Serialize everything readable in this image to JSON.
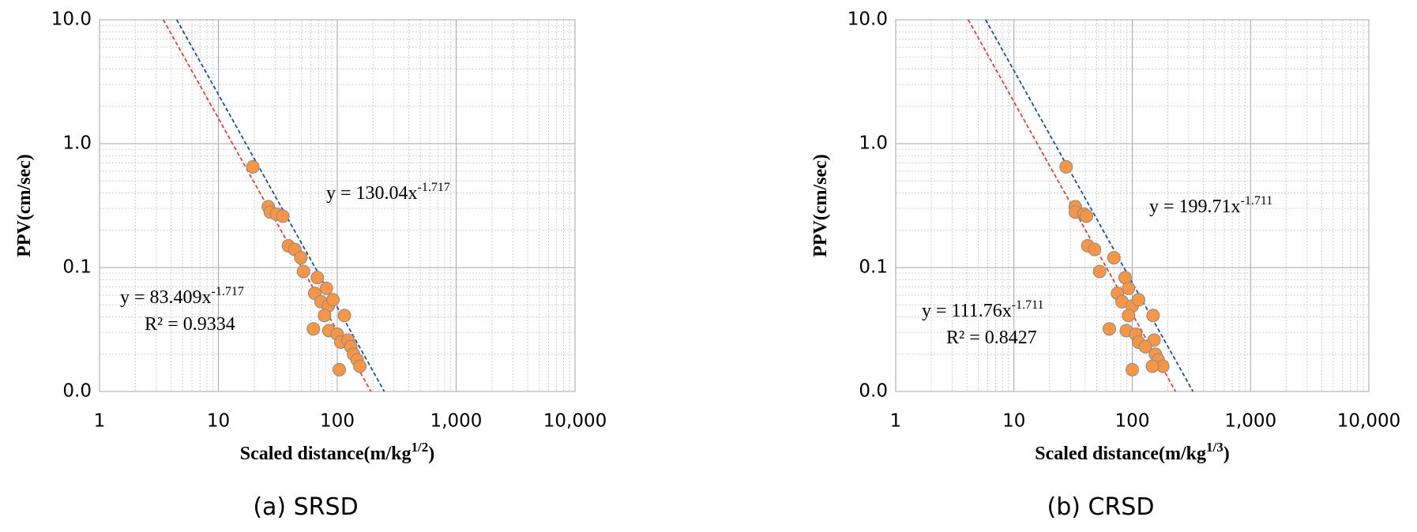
{
  "chart_data": [
    {
      "type": "scatter",
      "caption": "(a) SRSD",
      "x_label": [
        "Scaled distance(m/kg",
        "1/2",
        ")"
      ],
      "y_label": "PPV(cm/sec)",
      "log_x": true,
      "log_y": true,
      "grid": true,
      "xlim": [
        1,
        10000
      ],
      "xticks": [
        1,
        10,
        100,
        {
          "value": 1000,
          "label": "1,000"
        },
        {
          "value": 10000,
          "label": "10,000"
        }
      ],
      "ylim": [
        0.01,
        10
      ],
      "yticks": [
        {
          "value": 0.01,
          "label": "0.0"
        },
        {
          "value": 0.1,
          "label": "0.1"
        },
        {
          "value": 1,
          "label": "1.0"
        },
        {
          "value": 10,
          "label": "10.0"
        }
      ],
      "color": "#f79646",
      "x": [
        19.5,
        26.3,
        27.3,
        30.8,
        34.8,
        38.8,
        43.9,
        49.4,
        52,
        68,
        64.5,
        73,
        81,
        84,
        92,
        78,
        115,
        63,
        85,
        100,
        107,
        123,
        130,
        137,
        147,
        155,
        104
      ],
      "values": [
        0.65,
        0.31,
        0.28,
        0.27,
        0.26,
        0.15,
        0.14,
        0.12,
        0.093,
        0.083,
        0.062,
        0.053,
        0.068,
        0.049,
        0.055,
        0.041,
        0.041,
        0.032,
        0.031,
        0.029,
        0.025,
        0.026,
        0.023,
        0.02,
        0.018,
        0.016,
        0.015
      ],
      "trendlines": [
        {
          "color": "#1f4e99",
          "coefficient": 130.04,
          "exponent": -1.717,
          "label": "y = 130.04x",
          "exponent_label": "-1.717"
        },
        {
          "color": "#d9443a",
          "coefficient": 83.409,
          "exponent": -1.717,
          "label": "y = 83.409x",
          "exponent_label": "-1.717",
          "r2_label": "R² = 0.9334"
        }
      ]
    },
    {
      "type": "scatter",
      "caption": "(b) CRSD",
      "x_label": [
        "Scaled distance(m/kg",
        "1/3",
        ")"
      ],
      "y_label": "PPV(cm/sec)",
      "log_x": true,
      "log_y": true,
      "grid": true,
      "xlim": [
        1,
        10000
      ],
      "xticks": [
        1,
        10,
        100,
        {
          "value": 1000,
          "label": "1,000"
        },
        {
          "value": 10000,
          "label": "10,000"
        }
      ],
      "ylim": [
        0.01,
        10
      ],
      "yticks": [
        {
          "value": 0.01,
          "label": "0.0"
        },
        {
          "value": 0.1,
          "label": "0.1"
        },
        {
          "value": 1,
          "label": "1.0"
        },
        {
          "value": 10,
          "label": "10.0"
        }
      ],
      "color": "#f79646",
      "x": [
        27.6,
        33,
        33,
        39,
        41,
        42,
        48,
        70,
        53,
        87,
        75,
        82,
        93,
        100,
        113,
        93,
        150,
        64,
        89,
        107,
        113,
        153,
        129,
        157,
        166,
        181,
        148,
        100
      ],
      "values": [
        0.65,
        0.31,
        0.28,
        0.27,
        0.26,
        0.15,
        0.14,
        0.12,
        0.093,
        0.083,
        0.062,
        0.053,
        0.068,
        0.049,
        0.055,
        0.041,
        0.041,
        0.032,
        0.031,
        0.029,
        0.025,
        0.026,
        0.023,
        0.02,
        0.018,
        0.016,
        0.016,
        0.015
      ],
      "trendlines": [
        {
          "color": "#1f4e99",
          "coefficient": 199.71,
          "exponent": -1.711,
          "label": "y = 199.71x",
          "exponent_label": "-1.711"
        },
        {
          "color": "#d9443a",
          "coefficient": 111.76,
          "exponent": -1.711,
          "label": "y = 111.76x",
          "exponent_label": "-1.711",
          "r2_label": "R² = 0.8427"
        }
      ]
    }
  ]
}
